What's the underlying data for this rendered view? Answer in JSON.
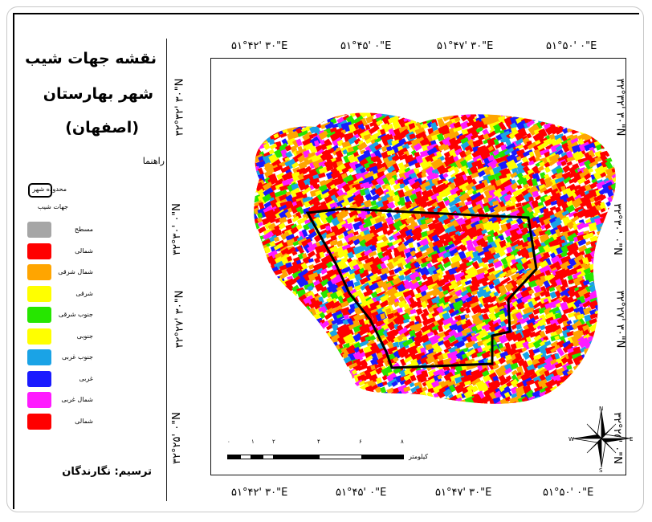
{
  "legend": {
    "title": "نقشه جهات شیب",
    "city": "شهر بهارستان",
    "province": "(اصفهان)",
    "guide_label": "راهنما",
    "boundary_label": "محدوده شهر",
    "aspect_title": "جهات شیب",
    "classes": [
      {
        "label": "مسطح",
        "color": "#a6a6a6"
      },
      {
        "label": "شمالی",
        "color": "#ff0000"
      },
      {
        "label": "شمال شرقی",
        "color": "#ffa500"
      },
      {
        "label": "شرقی",
        "color": "#ffff00"
      },
      {
        "label": "جنوب شرقی",
        "color": "#26e600"
      },
      {
        "label": "جنوبی",
        "color": "#ffff00"
      },
      {
        "label": "جنوب غربی",
        "color": "#1aa3e6"
      },
      {
        "label": "غربی",
        "color": "#1a1aff"
      },
      {
        "label": "شمال غربی",
        "color": "#ff1aff"
      },
      {
        "label": "شمالی",
        "color": "#ff0000"
      }
    ],
    "credit": "ترسیم: نگارندگان"
  },
  "coords": {
    "top": [
      "۵۱°۴۲' ۳۰\"E",
      "۵۱°۴۵' ۰\"E",
      "۵۱°۴۷' ۳۰\"E",
      "۵۱°۵۰' ۰\"E"
    ],
    "bottom": [
      "۵۱°۴۲' ۳۰\"E",
      "۵۱°۴۵' ۰\"E",
      "۵۱°۴۷' ۳۰\"E",
      "۵۱°۵۰' ۰\"E"
    ],
    "left": [
      "۳۲°۳۲' ۳۰\"N",
      "۳۲°۳۰' ۰\"N",
      "۳۲°۲۷' ۳۰\"N",
      "۳۲°۲۵' ۰\"N"
    ],
    "right": [
      "۳۲°۳۲' ۳۰\"N",
      "۳۲°۳۰' ۰\"N",
      "۳۲°۲۷' ۳۰\"N",
      "۳۲°۲۵' ۰\"N"
    ]
  },
  "scale": {
    "ticks": [
      "۰",
      "۱",
      "۲",
      "۴",
      "۶",
      "۸"
    ],
    "unit": "کیلومتر"
  },
  "north_arrow": {
    "n": "N",
    "s": "S",
    "e": "E",
    "w": "W"
  }
}
